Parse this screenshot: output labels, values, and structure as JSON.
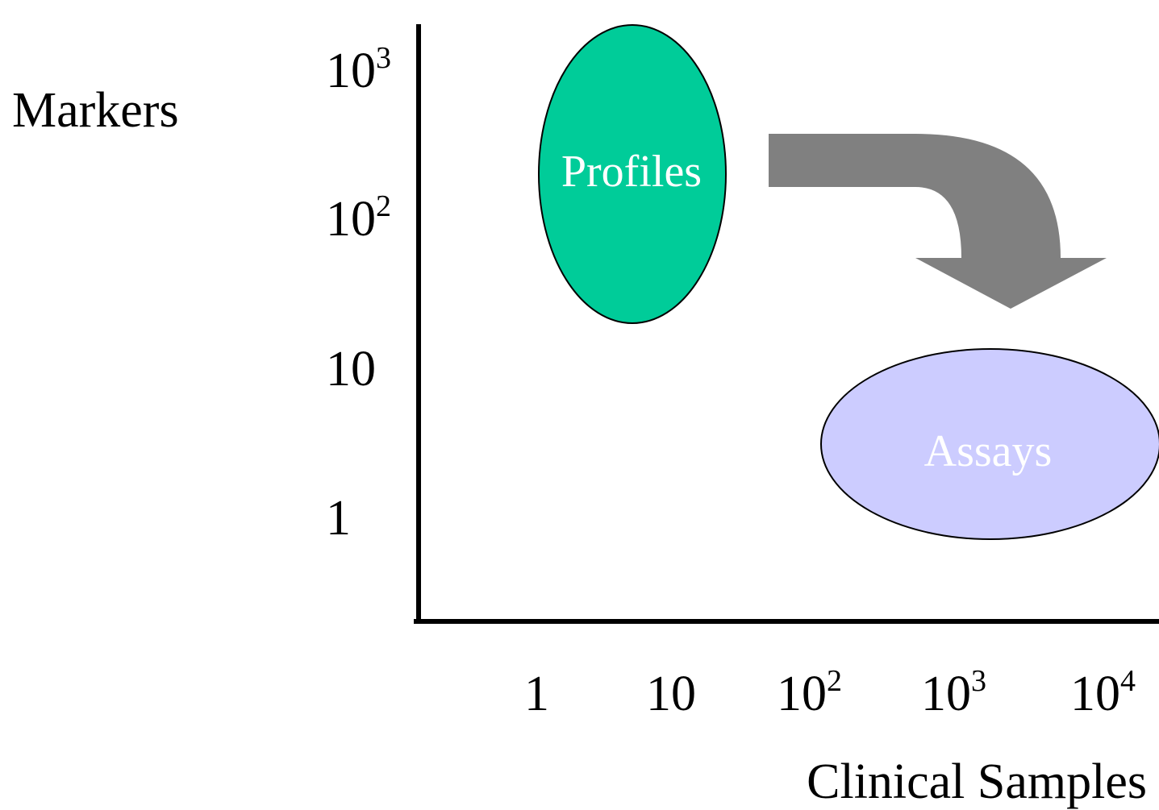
{
  "y_axis": {
    "label": "Markers",
    "ticks": [
      {
        "base": "10",
        "exp": "3"
      },
      {
        "base": "10",
        "exp": "2"
      },
      {
        "base": "10",
        "exp": ""
      },
      {
        "base": "1",
        "exp": ""
      }
    ]
  },
  "x_axis": {
    "label": "Clinical Samples",
    "ticks": [
      {
        "base": "1",
        "exp": ""
      },
      {
        "base": "10",
        "exp": ""
      },
      {
        "base": "10",
        "exp": "2"
      },
      {
        "base": "10",
        "exp": "3"
      },
      {
        "base": "10",
        "exp": "4"
      }
    ]
  },
  "nodes": {
    "profiles": {
      "label": "Profiles",
      "fill": "#00CC99"
    },
    "assays": {
      "label": "Assays",
      "fill": "#CCCCFF"
    }
  },
  "arrow": {
    "fill": "#808080"
  }
}
